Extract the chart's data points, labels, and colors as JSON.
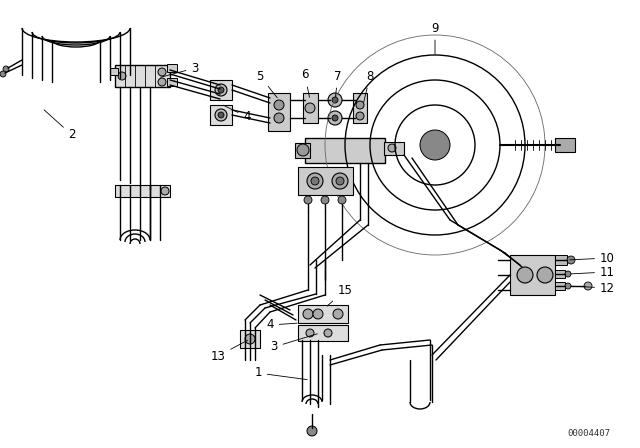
{
  "bg_color": "#ffffff",
  "line_color": "#000000",
  "label_color": "#000000",
  "diagram_id": "00004407",
  "lw_pipe": 1.0,
  "lw_heavy": 1.5,
  "lw_thin": 0.6,
  "figsize": [
    6.4,
    4.48
  ],
  "dpi": 100
}
